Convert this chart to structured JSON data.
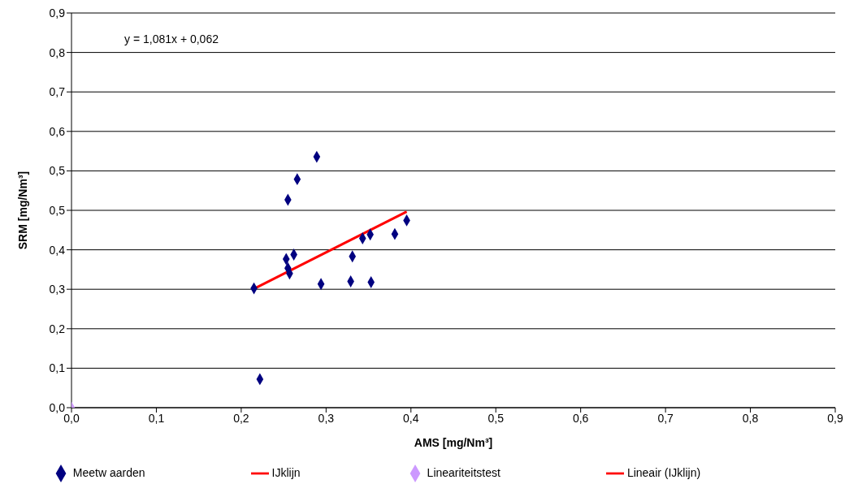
{
  "chart_data": {
    "type": "scatter",
    "xlabel": "AMS [mg/Nm³]",
    "ylabel": "SRM [mg/Nm³]",
    "annotations": [
      "y = 1,081x + 0,062"
    ],
    "xlim": [
      0,
      0.9
    ],
    "xticks": [
      {
        "value": 0,
        "label": "0,0"
      },
      {
        "value": 0.1,
        "label": "0,1"
      },
      {
        "value": 0.2,
        "label": "0,2"
      },
      {
        "value": 0.3,
        "label": "0,3"
      },
      {
        "value": 0.4,
        "label": "0,4"
      },
      {
        "value": 0.5,
        "label": "0,5"
      },
      {
        "value": 0.6,
        "label": "0,6"
      },
      {
        "value": 0.7,
        "label": "0,7"
      },
      {
        "value": 0.8,
        "label": "0,8"
      },
      {
        "value": 0.9,
        "label": "0,9"
      }
    ],
    "ylim": [
      0,
      0.9
    ],
    "yticks": [
      {
        "value": 0,
        "label": "0,0"
      },
      {
        "value": 0.09,
        "label": "0,1"
      },
      {
        "value": 0.18,
        "label": "0,2"
      },
      {
        "value": 0.27,
        "label": "0,3"
      },
      {
        "value": 0.36,
        "label": "0,4"
      },
      {
        "value": 0.45,
        "label": "0,5"
      },
      {
        "value": 0.54,
        "label": "0,5"
      },
      {
        "value": 0.63,
        "label": "0,6"
      },
      {
        "value": 0.72,
        "label": "0,7"
      },
      {
        "value": 0.81,
        "label": "0,8"
      },
      {
        "value": 0.9,
        "label": "0,9"
      }
    ],
    "grid": "y",
    "legend": "bottom",
    "series": [
      {
        "name": "Meetw aarden",
        "marker": "diamond",
        "color": "#000080",
        "x": [
          0.215,
          0.222,
          0.255,
          0.253,
          0.262,
          0.255,
          0.257,
          0.266,
          0.289,
          0.294,
          0.329,
          0.331,
          0.343,
          0.352,
          0.353,
          0.381,
          0.395
        ],
        "values": [
          0.272,
          0.065,
          0.474,
          0.339,
          0.349,
          0.318,
          0.306,
          0.521,
          0.572,
          0.282,
          0.288,
          0.345,
          0.386,
          0.395,
          0.286,
          0.396,
          0.427
        ]
      },
      {
        "name": "IJklijn",
        "type": "line",
        "color": "#ff0000"
      },
      {
        "name": "Lineariteitstest",
        "marker": "diamond",
        "color": "#cc99ff",
        "x": [
          0
        ],
        "values": [
          0
        ]
      },
      {
        "name": "Lineair (IJklijn)",
        "type": "line",
        "color": "#ff0000",
        "x": [
          0.215,
          0.395
        ],
        "values": [
          0.271,
          0.447
        ]
      }
    ]
  }
}
